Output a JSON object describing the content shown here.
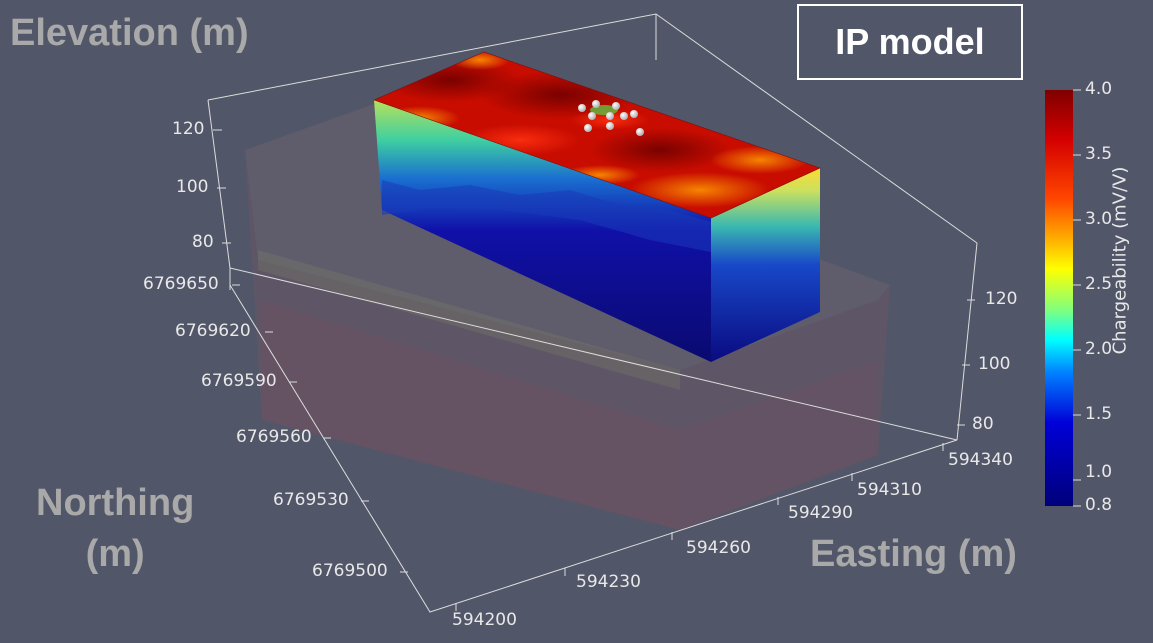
{
  "title_box": "IP model",
  "axes": {
    "elevation": {
      "title": "Elevation (m)",
      "ticks": [
        "120",
        "100",
        "80"
      ]
    },
    "northing": {
      "title_line1": "Northing",
      "title_line2": "(m)",
      "ticks": [
        "6769650",
        "6769620",
        "6769590",
        "6769560",
        "6769530",
        "6769500"
      ]
    },
    "easting": {
      "title": "Easting (m)",
      "ticks": [
        "594200",
        "594230",
        "594260",
        "594290",
        "594310",
        "594340"
      ]
    },
    "elevation_right": {
      "ticks": [
        "120",
        "100",
        "80"
      ]
    }
  },
  "colorbar": {
    "label": "Chargeability (mV/V)",
    "ticks": [
      "4.0",
      "3.5",
      "3.0",
      "2.5",
      "2.0",
      "1.5",
      "1.0",
      "0.8"
    ],
    "min": 0.8,
    "max": 4.0,
    "colormap": [
      "#7f0000",
      "#d70000",
      "#ff4500",
      "#ffa500",
      "#ffff00",
      "#7fff7f",
      "#00ffff",
      "#0080ff",
      "#0000d0",
      "#00007f"
    ]
  },
  "colors": {
    "background": "#525669",
    "high": "#b50000",
    "low": "#12127a",
    "mid": "#7fdc6a"
  }
}
